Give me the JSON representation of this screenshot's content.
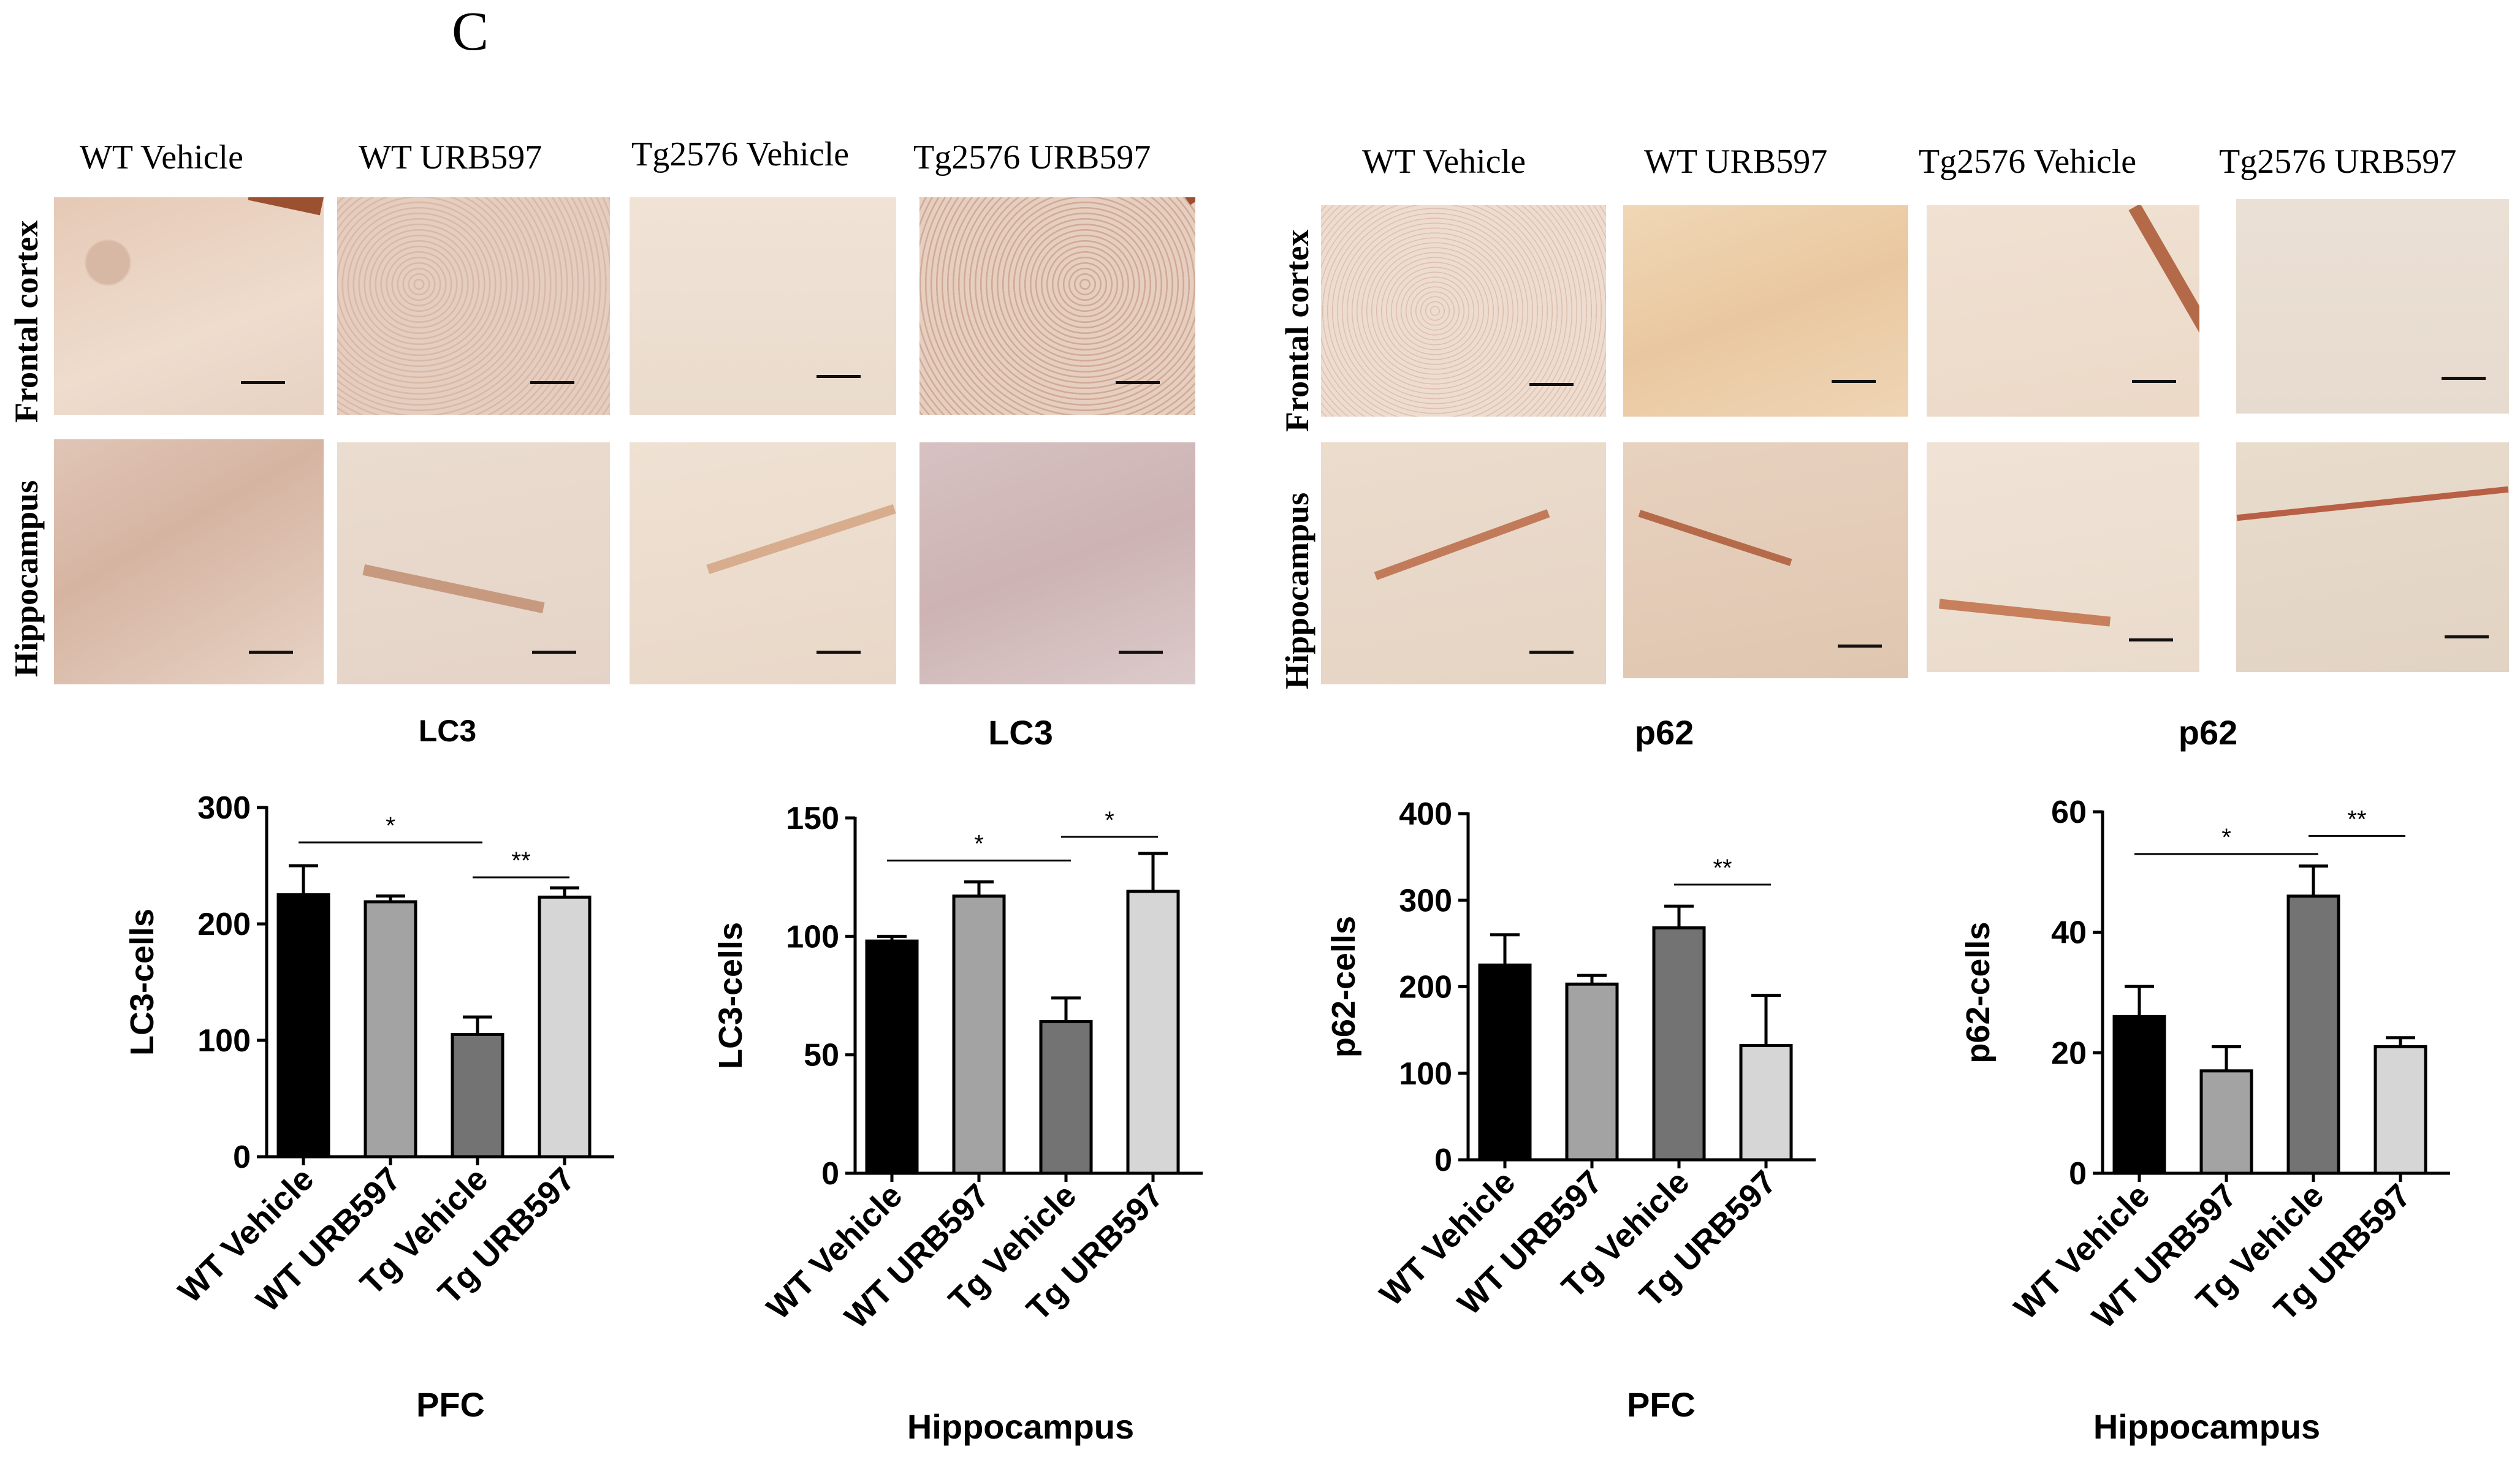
{
  "panel_letter": "C",
  "lc3_block": {
    "columns": [
      "WT Vehicle",
      "WT URB597",
      "Tg2576 Vehicle",
      "Tg2576 URB597"
    ],
    "rows": [
      "Frontal cortex",
      "Hippocampus"
    ]
  },
  "p62_block": {
    "columns": [
      "WT Vehicle",
      "WT URB597",
      "Tg2576 Vehicle",
      "Tg2576 URB597"
    ],
    "rows": [
      "Frontal cortex",
      "Hippocampus"
    ]
  },
  "colors": {
    "bar_fills": [
      "#000000",
      "#a3a3a3",
      "#737373",
      "#d6d6d6"
    ],
    "tissue_bg": "#e9d6c4",
    "tissue_stain": "#9a4a2e"
  },
  "chart_data": [
    {
      "type": "bar",
      "title": "LC3",
      "region": "PFC",
      "ylabel": "LC3-cells",
      "categories": [
        "WT Vehicle",
        "WT URB597",
        "Tg Vehicle",
        "Tg URB597"
      ],
      "values": [
        225,
        219,
        105,
        223
      ],
      "errors": [
        25,
        5,
        15,
        8
      ],
      "ylim": [
        0,
        300
      ],
      "yticks": [
        0,
        100,
        200,
        300
      ],
      "significance": [
        {
          "from": 0,
          "to": 2,
          "label": "*",
          "level": 270
        },
        {
          "from": 2,
          "to": 3,
          "label": "**",
          "level": 240
        }
      ]
    },
    {
      "type": "bar",
      "title": "LC3",
      "region": "Hippocampus",
      "ylabel": "LC3-cells",
      "categories": [
        "WT Vehicle",
        "WT URB597",
        "Tg Vehicle",
        "Tg URB597"
      ],
      "values": [
        98,
        117,
        64,
        119
      ],
      "errors": [
        2,
        6,
        10,
        16
      ],
      "ylim": [
        0,
        150
      ],
      "yticks": [
        0,
        50,
        100,
        150
      ],
      "significance": [
        {
          "from": 0,
          "to": 2,
          "label": "*",
          "level": 132
        },
        {
          "from": 2,
          "to": 3,
          "label": "*",
          "level": 142
        }
      ]
    },
    {
      "type": "bar",
      "title": "p62",
      "region": "PFC",
      "ylabel": "p62-cells",
      "categories": [
        "WT Vehicle",
        "WT URB597",
        "Tg Vehicle",
        "Tg URB597"
      ],
      "values": [
        225,
        203,
        268,
        132
      ],
      "errors": [
        35,
        10,
        25,
        58
      ],
      "ylim": [
        0,
        400
      ],
      "yticks": [
        0,
        100,
        200,
        300,
        400
      ],
      "significance": [
        {
          "from": 2,
          "to": 3,
          "label": "**",
          "level": 318
        }
      ]
    },
    {
      "type": "bar",
      "title": "p62",
      "region": "Hippocampus",
      "ylabel": "p62-cells",
      "categories": [
        "WT Vehicle",
        "WT URB597",
        "Tg Vehicle",
        "Tg URB597"
      ],
      "values": [
        26,
        17,
        46,
        21
      ],
      "errors": [
        5,
        4,
        5,
        1.5
      ],
      "ylim": [
        0,
        60
      ],
      "yticks": [
        0,
        20,
        40,
        60
      ],
      "significance": [
        {
          "from": 0,
          "to": 2,
          "label": "*",
          "level": 53
        },
        {
          "from": 2,
          "to": 3,
          "label": "**",
          "level": 56
        }
      ]
    }
  ]
}
